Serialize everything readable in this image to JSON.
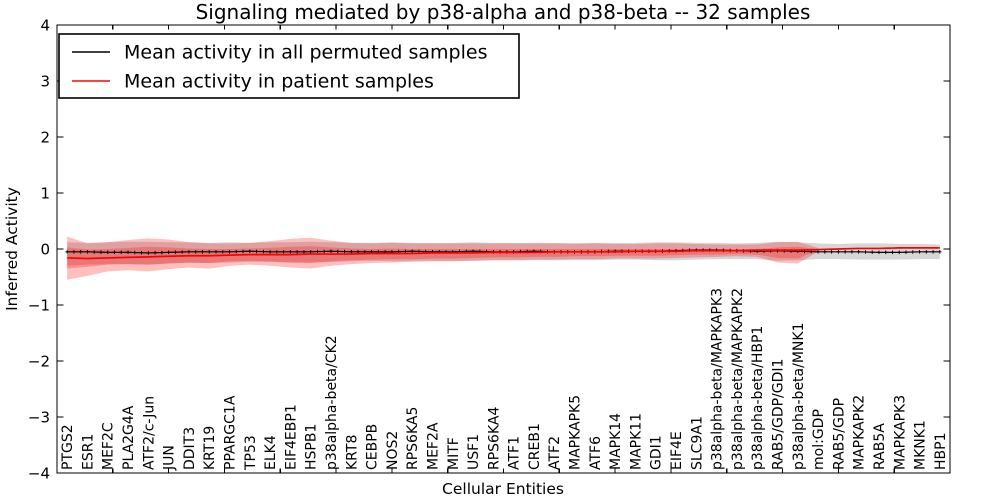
{
  "figure": {
    "title": "Signaling mediated by p38-alpha and p38-beta -- 32 samples",
    "xlabel": "Cellular Entities",
    "ylabel": "Inferred Activity"
  },
  "legend": {
    "position": "upper left",
    "entries": [
      {
        "label": "Mean activity in all permuted samples",
        "color": "#000000"
      },
      {
        "label": "Mean activity in patient samples",
        "color": "#ff0000"
      }
    ]
  },
  "chart_data": {
    "type": "line",
    "title": "Signaling mediated by p38-alpha and p38-beta -- 32 samples",
    "xlabel": "Cellular Entities",
    "ylabel": "Inferred Activity",
    "ylim": [
      -4,
      4
    ],
    "yticks": [
      4,
      3,
      2,
      1,
      0,
      -1,
      -2,
      -3,
      -4
    ],
    "x_tick_intervals": 16,
    "grid": false,
    "legend_position": "upper left",
    "colors": {
      "permuted_line": "#000000",
      "patient_line": "#ff0000",
      "permuted_band": "rgba(120,120,120,0.30)",
      "patient_band": "rgba(255,0,0,0.25)"
    },
    "categories": [
      "PTGS2",
      "ESR1",
      "MEF2C",
      "PLA2G4A",
      "ATF2/c-Jun",
      "JUN",
      "DDIT3",
      "KRT19",
      "PPARGC1A",
      "TP53",
      "ELK4",
      "EIF4EBP1",
      "HSPB1",
      "p38alpha-beta/CK2",
      "KRT8",
      "CEBPB",
      "NOS2",
      "RPS6KA5",
      "MEF2A",
      "MITF",
      "USF1",
      "RPS6KA4",
      "ATF1",
      "CREB1",
      "ATF2",
      "MAPKAPK5",
      "ATF6",
      "MAPK14",
      "MAPK11",
      "GDI1",
      "EIF4E",
      "SLC9A1",
      "p38alpha-beta/MAPKAPK3",
      "p38alpha-beta/MAPKAPK2",
      "p38alpha-beta/HBP1",
      "RAB5/GDP/GDI1",
      "p38alpha-beta/MNK1",
      "mol:GDP",
      "RAB5/GDP",
      "MAPKAPK2",
      "RAB5A",
      "MAPKAPK3",
      "MKNK1",
      "HBP1"
    ],
    "series": [
      {
        "name": "Mean activity in all permuted samples",
        "values": [
          -0.05,
          -0.05,
          -0.06,
          -0.06,
          -0.07,
          -0.06,
          -0.05,
          -0.05,
          -0.05,
          -0.04,
          -0.05,
          -0.05,
          -0.05,
          -0.04,
          -0.05,
          -0.05,
          -0.05,
          -0.04,
          -0.05,
          -0.05,
          -0.04,
          -0.05,
          -0.05,
          -0.04,
          -0.05,
          -0.05,
          -0.05,
          -0.04,
          -0.04,
          -0.04,
          -0.03,
          -0.02,
          -0.02,
          -0.03,
          -0.04,
          -0.03,
          -0.04,
          -0.05,
          -0.05,
          -0.05,
          -0.06,
          -0.06,
          -0.05,
          -0.05
        ]
      },
      {
        "name": "Mean activity in patient samples",
        "values": [
          -0.16,
          -0.17,
          -0.16,
          -0.15,
          -0.14,
          -0.13,
          -0.12,
          -0.12,
          -0.11,
          -0.1,
          -0.1,
          -0.1,
          -0.09,
          -0.09,
          -0.09,
          -0.08,
          -0.08,
          -0.08,
          -0.07,
          -0.07,
          -0.07,
          -0.06,
          -0.06,
          -0.06,
          -0.05,
          -0.05,
          -0.05,
          -0.05,
          -0.04,
          -0.04,
          -0.04,
          -0.03,
          -0.03,
          -0.03,
          -0.02,
          -0.02,
          -0.02,
          -0.01,
          0.0,
          0.01,
          0.01,
          0.02,
          0.02,
          0.02
        ]
      }
    ],
    "bands": [
      {
        "name": "permuted-confidence-band",
        "upper": [
          0.12,
          0.11,
          0.12,
          0.13,
          0.13,
          0.12,
          0.12,
          0.11,
          0.12,
          0.11,
          0.12,
          0.12,
          0.13,
          0.12,
          0.11,
          0.11,
          0.12,
          0.11,
          0.11,
          0.11,
          0.12,
          0.11,
          0.11,
          0.11,
          0.11,
          0.11,
          0.11,
          0.11,
          0.11,
          0.12,
          0.12,
          0.11,
          0.11,
          0.1,
          0.11,
          0.13,
          0.12,
          0.1,
          0.09,
          0.1,
          0.1,
          0.09,
          0.09,
          0.08
        ],
        "lower": [
          -0.3,
          -0.28,
          -0.27,
          -0.27,
          -0.28,
          -0.26,
          -0.25,
          -0.25,
          -0.24,
          -0.23,
          -0.23,
          -0.24,
          -0.24,
          -0.23,
          -0.22,
          -0.21,
          -0.22,
          -0.21,
          -0.21,
          -0.21,
          -0.21,
          -0.2,
          -0.2,
          -0.2,
          -0.2,
          -0.2,
          -0.2,
          -0.19,
          -0.19,
          -0.2,
          -0.2,
          -0.19,
          -0.18,
          -0.18,
          -0.18,
          -0.21,
          -0.2,
          -0.18,
          -0.18,
          -0.19,
          -0.19,
          -0.19,
          -0.18,
          -0.18
        ]
      },
      {
        "name": "patient-confidence-band-outer",
        "upper": [
          0.22,
          0.1,
          0.12,
          0.16,
          0.19,
          0.17,
          0.12,
          0.1,
          0.1,
          0.11,
          0.14,
          0.18,
          0.2,
          0.15,
          0.11,
          0.1,
          0.11,
          0.1,
          0.1,
          0.1,
          0.1,
          0.1,
          0.1,
          0.1,
          0.1,
          0.09,
          0.1,
          0.09,
          0.09,
          0.1,
          0.1,
          0.09,
          0.08,
          0.08,
          0.08,
          0.12,
          0.13,
          0.02,
          null,
          null,
          null,
          null,
          null,
          null
        ],
        "lower": [
          -0.55,
          -0.48,
          -0.4,
          -0.38,
          -0.4,
          -0.36,
          -0.33,
          -0.35,
          -0.3,
          -0.28,
          -0.3,
          -0.33,
          -0.35,
          -0.3,
          -0.27,
          -0.25,
          -0.24,
          -0.23,
          -0.22,
          -0.22,
          -0.21,
          -0.2,
          -0.2,
          -0.19,
          -0.19,
          -0.18,
          -0.18,
          -0.17,
          -0.17,
          -0.17,
          -0.16,
          -0.15,
          -0.14,
          -0.13,
          -0.14,
          -0.24,
          -0.26,
          -0.05,
          null,
          null,
          null,
          null,
          null,
          null
        ]
      },
      {
        "name": "patient-confidence-band-inner",
        "upper": [
          0.03,
          -0.01,
          0.0,
          0.02,
          0.04,
          0.03,
          0.01,
          0.0,
          0.0,
          0.01,
          0.02,
          0.04,
          0.05,
          0.03,
          0.01,
          0.0,
          0.01,
          0.0,
          0.0,
          0.0,
          0.0,
          0.0,
          0.0,
          0.0,
          0.0,
          0.0,
          0.0,
          0.0,
          0.0,
          0.0,
          0.0,
          0.0,
          0.0,
          0.0,
          0.0,
          0.03,
          0.04,
          0.0,
          null,
          null,
          null,
          null,
          null,
          null
        ],
        "lower": [
          -0.35,
          -0.32,
          -0.28,
          -0.27,
          -0.28,
          -0.26,
          -0.24,
          -0.25,
          -0.22,
          -0.21,
          -0.22,
          -0.24,
          -0.25,
          -0.22,
          -0.2,
          -0.19,
          -0.18,
          -0.18,
          -0.17,
          -0.17,
          -0.16,
          -0.15,
          -0.15,
          -0.14,
          -0.14,
          -0.13,
          -0.13,
          -0.12,
          -0.12,
          -0.12,
          -0.11,
          -0.1,
          -0.1,
          -0.09,
          -0.1,
          -0.16,
          -0.17,
          -0.02,
          null,
          null,
          null,
          null,
          null,
          null
        ]
      }
    ]
  }
}
